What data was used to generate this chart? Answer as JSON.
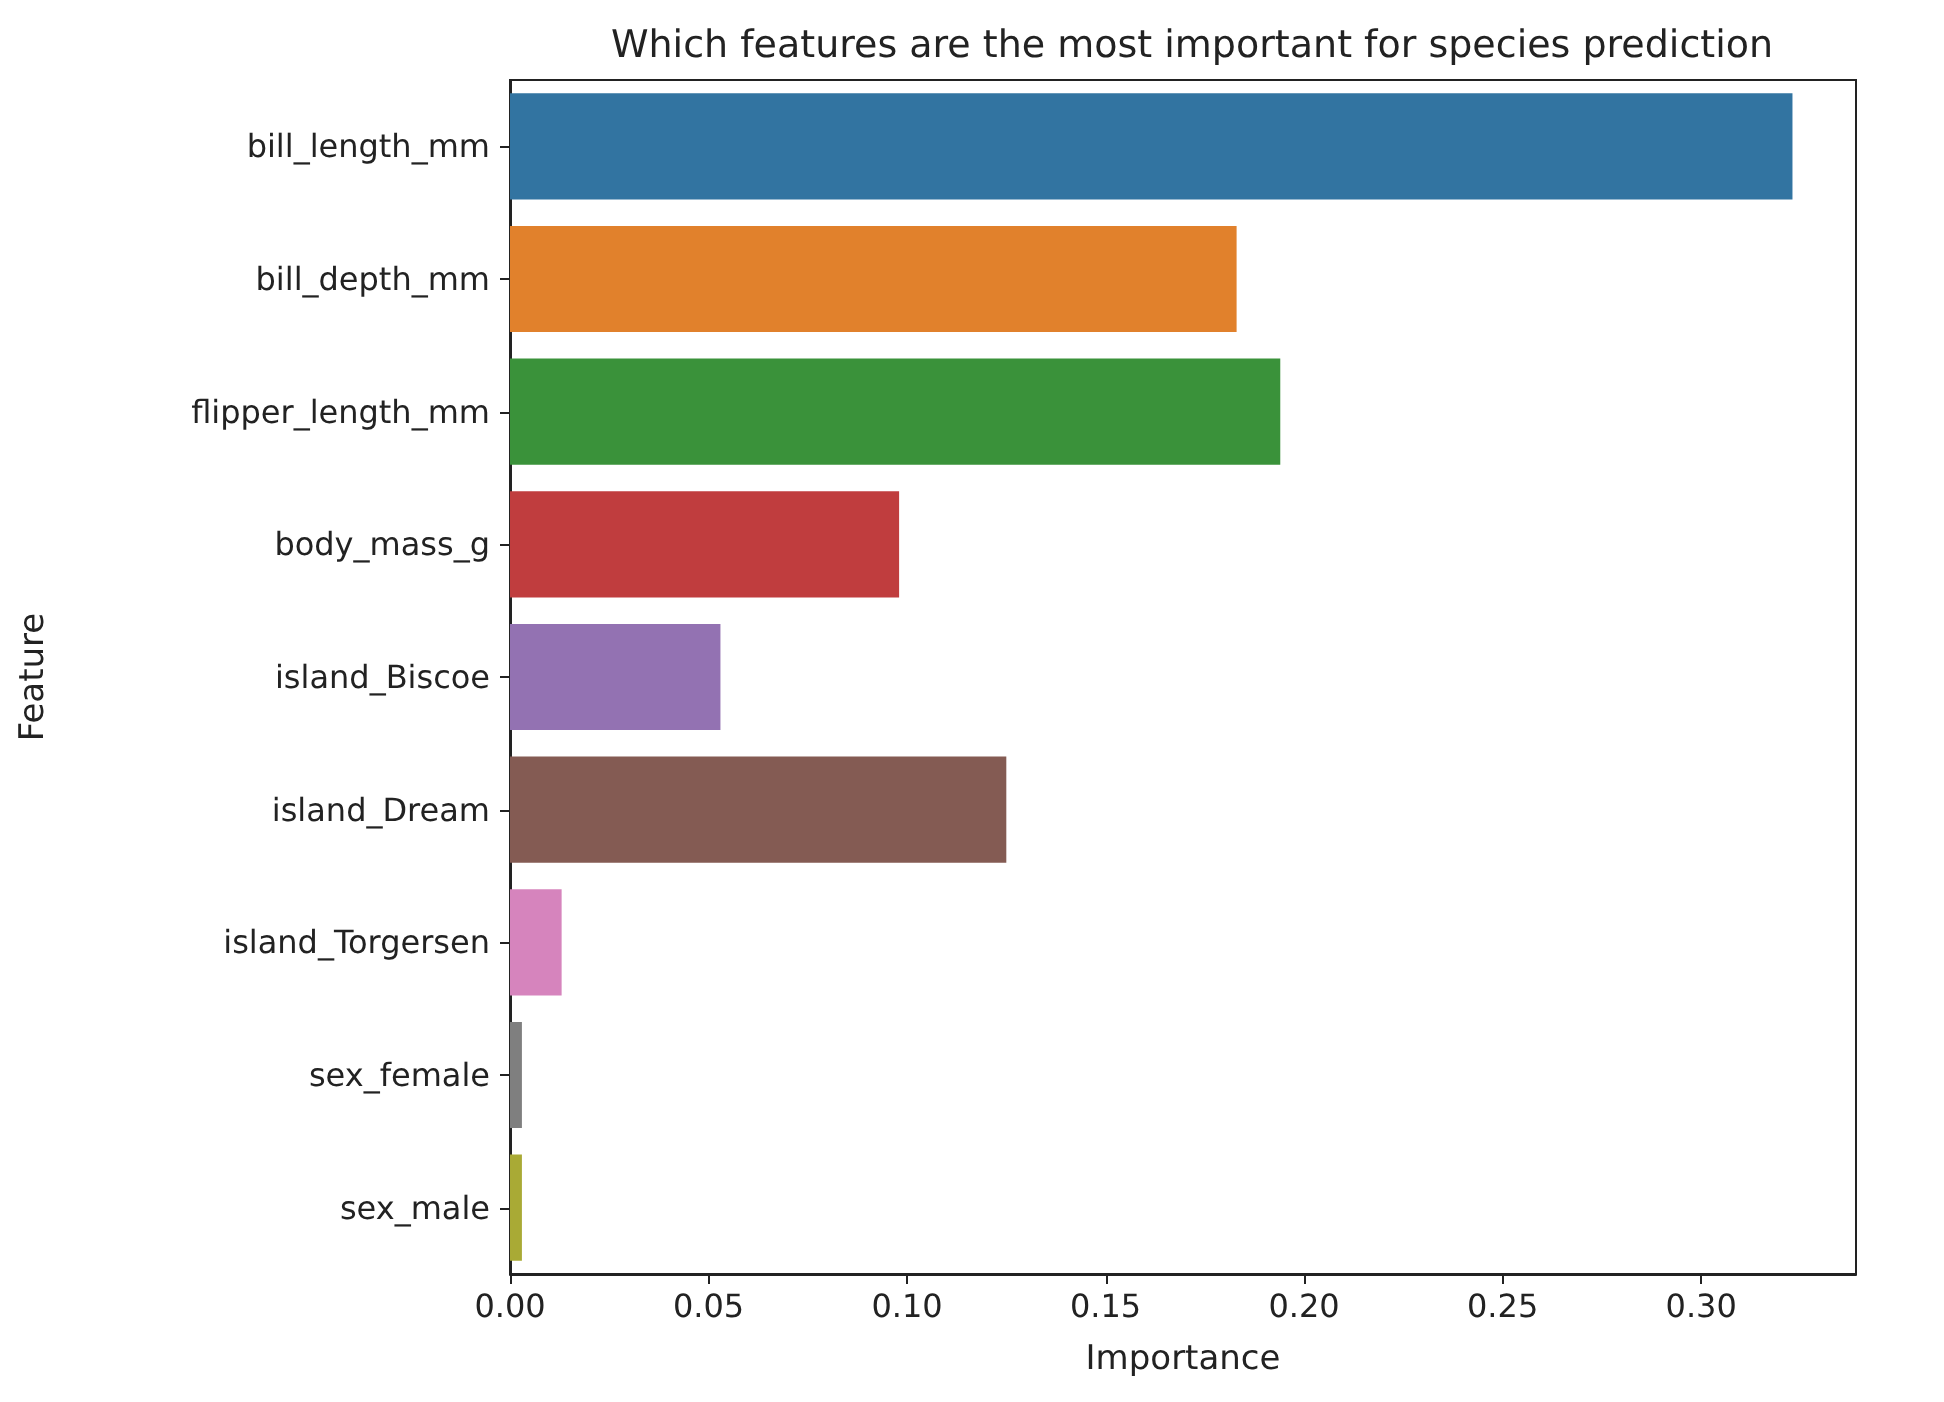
{
  "chart_data": {
    "type": "bar",
    "orientation": "horizontal",
    "title": "Which features are the most important for species prediction",
    "xlabel": "Importance",
    "ylabel": "Feature",
    "categories": [
      "bill_length_mm",
      "bill_depth_mm",
      "flipper_length_mm",
      "body_mass_g",
      "island_Biscoe",
      "island_Dream",
      "island_Torgersen",
      "sex_female",
      "sex_male"
    ],
    "values": [
      0.323,
      0.183,
      0.194,
      0.098,
      0.053,
      0.125,
      0.013,
      0.003,
      0.003
    ],
    "colors": [
      "#3274a1",
      "#e1812c",
      "#3a923a",
      "#c03d3e",
      "#9372b2",
      "#845b53",
      "#d684bd",
      "#7f7f7f",
      "#a9aa35"
    ],
    "xlim": [
      0,
      0.339
    ],
    "xticks": [
      {
        "value": 0,
        "label": "0.00"
      },
      {
        "value": 0.05,
        "label": "0.05"
      },
      {
        "value": 0.1,
        "label": "0.10"
      },
      {
        "value": 0.15,
        "label": "0.15"
      },
      {
        "value": 0.2,
        "label": "0.20"
      },
      {
        "value": 0.25,
        "label": "0.25"
      },
      {
        "value": 0.3,
        "label": "0.30"
      }
    ],
    "grid": false
  }
}
